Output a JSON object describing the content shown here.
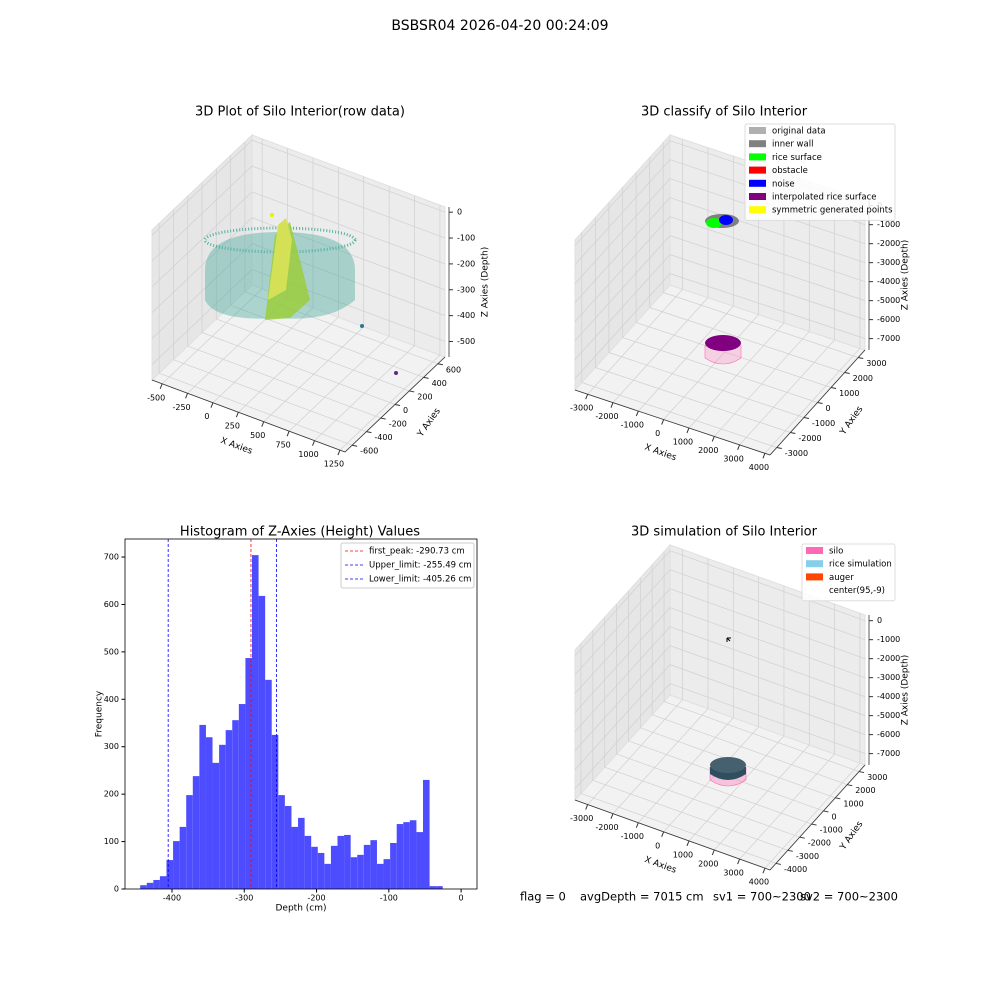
{
  "title": "BSBSR04 2026-04-20 00:24:09",
  "footer": [
    "flag = 0",
    "avgDepth = 7015 cm",
    "sv1 = 700~2300",
    "sv2 = 700~2300"
  ],
  "chart_data": [
    {
      "type": "scatter3d",
      "title": "3D Plot of Silo Interior(row data)",
      "xlabel": "X Axies",
      "ylabel": "Y Axies",
      "zlabel": "Z Axies (Depth)",
      "xlim": [
        -600,
        1300
      ],
      "ylim": [
        -700,
        700
      ],
      "zlim": [
        -560,
        20
      ],
      "xticks": [
        -500,
        -250,
        0,
        250,
        500,
        750,
        1000,
        1250
      ],
      "yticks": [
        -600,
        -400,
        -200,
        0,
        200,
        400,
        600
      ],
      "zticks": [
        -500,
        -400,
        -300,
        -200,
        -100,
        0
      ],
      "grid": true
    },
    {
      "type": "scatter3d",
      "title": "3D classify of Silo Interior",
      "xlabel": "X Axies",
      "ylabel": "Y Axies",
      "zlabel": "Z Axies (Depth)",
      "xlim": [
        -3500,
        4200
      ],
      "ylim": [
        -3500,
        3500
      ],
      "zlim": [
        -7600,
        300
      ],
      "xticks": [
        -3000,
        -2000,
        -1000,
        0,
        1000,
        2000,
        3000,
        4000
      ],
      "yticks": [
        -3000,
        -2000,
        -1000,
        0,
        1000,
        2000,
        3000
      ],
      "zticks": [
        -7000,
        -6000,
        -5000,
        -4000,
        -3000,
        -2000,
        -1000,
        0
      ],
      "grid": true,
      "legend": [
        {
          "name": "original data",
          "color": "#b0b0b0"
        },
        {
          "name": "inner wall",
          "color": "#808080"
        },
        {
          "name": "rice surface",
          "color": "#00ff00"
        },
        {
          "name": "obstacle",
          "color": "#ff0000"
        },
        {
          "name": "noise",
          "color": "#0000ff"
        },
        {
          "name": "interpolated rice surface",
          "color": "#800080"
        },
        {
          "name": "symmetric generated points",
          "color": "#ffff00"
        }
      ]
    },
    {
      "type": "histogram",
      "title": "Histogram of Z-Axies (Height) Values",
      "xlabel": "Depth (cm)",
      "ylabel": "Frequency",
      "color": "#4d4dff",
      "bins": [
        -444,
        -434.9,
        -425.8,
        -416.7,
        -407.6,
        -398.5,
        -389.4,
        -380.3,
        -371.2,
        -362.1,
        -353,
        -343.9,
        -334.8,
        -325.7,
        -316.6,
        -307.5,
        -298.4,
        -289.3,
        -280.2,
        -271.1,
        -262,
        -252.9,
        -243.8,
        -234.7,
        -225.6,
        -216.5,
        -207.4,
        -198.3,
        -189.2,
        -180.1,
        -171,
        -161.9,
        -152.8,
        -143.7,
        -134.6,
        -125.5,
        -116.4,
        -107.3,
        -98.2,
        -89.1,
        -80,
        -70.9,
        -61.8,
        -52.7,
        -43.6,
        -34.5,
        -25.4
      ],
      "counts": [
        8,
        13,
        19,
        27,
        61,
        101,
        131,
        198,
        238,
        346,
        320,
        266,
        304,
        335,
        356,
        390,
        487,
        704,
        618,
        441,
        325,
        198,
        175,
        131,
        150,
        112,
        89,
        76,
        53,
        91,
        112,
        114,
        67,
        72,
        93,
        103,
        53,
        63,
        97,
        137,
        141,
        145,
        120,
        230,
        6,
        6
      ],
      "xlim": [
        -465,
        22
      ],
      "ylim": [
        0,
        738
      ],
      "xticks": [
        -400,
        -300,
        -200,
        -100,
        0
      ],
      "yticks": [
        0,
        100,
        200,
        300,
        400,
        500,
        600,
        700
      ],
      "vlines": [
        {
          "value": -290.73,
          "label": "first_peak: -290.73 cm",
          "color": "#ff0000"
        },
        {
          "value": -255.49,
          "label": "Upper_limit: -255.49 cm",
          "color": "#0000ff"
        },
        {
          "value": -405.26,
          "label": "Lower_limit: -405.26 cm",
          "color": "#0000ff"
        }
      ],
      "legend_loc": "upper right"
    },
    {
      "type": "scatter3d",
      "title": "3D simulation of Silo Interior",
      "xlabel": "X Axies",
      "ylabel": "Y Axies",
      "zlabel": "Z Axies (Depth)",
      "xlim": [
        -3500,
        4200
      ],
      "ylim": [
        -4500,
        3500
      ],
      "zlim": [
        -7600,
        300
      ],
      "xticks": [
        -3000,
        -2000,
        -1000,
        0,
        1000,
        2000,
        3000,
        4000
      ],
      "yticks": [
        -4000,
        -3000,
        -2000,
        -1000,
        0,
        1000,
        2000,
        3000
      ],
      "zticks": [
        -7000,
        -6000,
        -5000,
        -4000,
        -3000,
        -2000,
        -1000,
        0
      ],
      "grid": true,
      "legend": [
        {
          "name": "silo",
          "color": "#ff69b4"
        },
        {
          "name": "rice simulation",
          "color": "#87ceeb"
        },
        {
          "name": "auger",
          "color": "#ff4500"
        },
        {
          "name": "center(95,-9)",
          "color": "#ffffff"
        }
      ]
    }
  ]
}
